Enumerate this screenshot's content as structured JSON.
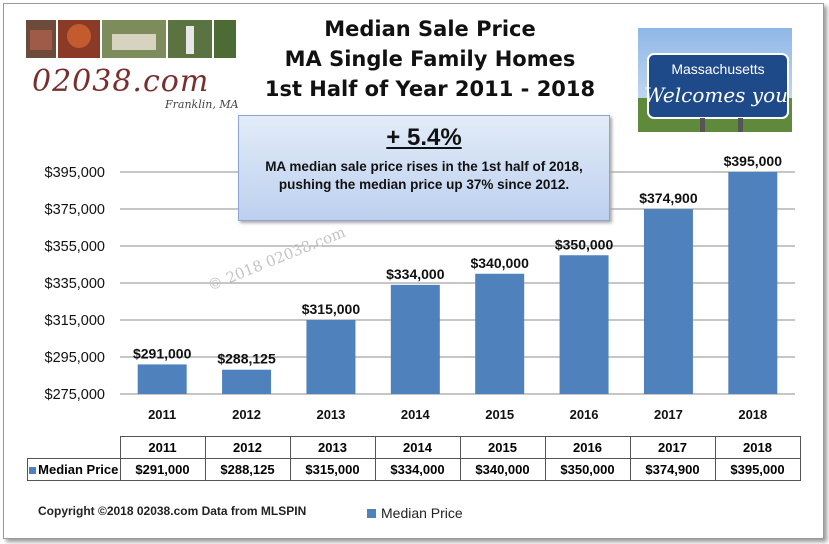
{
  "title": {
    "line1": "Median Sale Price",
    "line2": "MA Single Family Homes",
    "line3": "1st Half of Year 2011 - 2018"
  },
  "logo": {
    "brand": "02038.com",
    "sub": "Franklin, MA"
  },
  "sign": {
    "line1": "Massachusetts",
    "line2": "Welcomes you"
  },
  "callout": {
    "headline": "+ 5.4%",
    "text": "MA median sale price rises in the 1st half of 2018, pushing the median price up 37% since 2012."
  },
  "watermark": "© 2018 02038.com",
  "chart_data": {
    "type": "bar",
    "categories": [
      "2011",
      "2012",
      "2013",
      "2014",
      "2015",
      "2016",
      "2017",
      "2018"
    ],
    "series": [
      {
        "name": "Median Price",
        "values": [
          291000,
          288125,
          315000,
          334000,
          340000,
          350000,
          374900,
          395000
        ]
      }
    ],
    "data_labels": [
      "$291,000",
      "$288,125",
      "$315,000",
      "$334,000",
      "$340,000",
      "$350,000",
      "$374,900",
      "$395,000"
    ],
    "yticks": [
      "$275,000",
      "$295,000",
      "$315,000",
      "$335,000",
      "$355,000",
      "$375,000",
      "$395,000"
    ],
    "ytick_values": [
      275000,
      295000,
      315000,
      335000,
      355000,
      375000,
      395000
    ],
    "ylim": [
      275000,
      395000
    ],
    "grid": true,
    "legend": "bottom",
    "color": "#4f81bd"
  },
  "table": {
    "row_label": "Median Price",
    "years": [
      "2011",
      "2012",
      "2013",
      "2014",
      "2015",
      "2016",
      "2017",
      "2018"
    ],
    "values": [
      "$291,000",
      "$288,125",
      "$315,000",
      "$334,000",
      "$340,000",
      "$350,000",
      "$374,900",
      "$395,000"
    ]
  },
  "footer": "Copyright ©2018 02038.com Data from MLSPIN",
  "legend_label": "Median Price"
}
